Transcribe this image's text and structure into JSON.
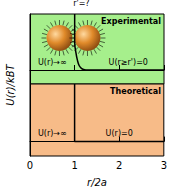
{
  "chart_data": [
    {
      "type": "line",
      "title": "Experimental",
      "ylabel": "U(r)/kBT",
      "x": [
        1,
        1,
        1.03,
        1.06,
        1.1,
        1.15,
        1.2,
        1.3,
        3
      ],
      "values": [
        1,
        0.5,
        0.3,
        0.18,
        0.08,
        0.03,
        0.01,
        0,
        0
      ],
      "color": "#000000",
      "background": "#a6ef8c",
      "xlim": [
        0,
        3
      ],
      "xticks": [
        0,
        1,
        2,
        3
      ],
      "ylim": [
        -0.25,
        1
      ],
      "yticks": [
        0
      ],
      "tick_labels": false,
      "annotations": [
        {
          "text": "r'=?",
          "x": 1.15,
          "y": 1.12
        },
        {
          "text": "U(r)→∞",
          "x": 0.5,
          "y": 0.07
        },
        {
          "text": "U(r≥r')=0",
          "x": 2.2,
          "y": 0.07
        }
      ]
    },
    {
      "type": "line",
      "title": "Theoretical",
      "xlabel": "r/2a",
      "x": [
        1,
        1,
        3
      ],
      "values": [
        1,
        0,
        0
      ],
      "color": "#000000",
      "background": "#f7bb88",
      "xlim": [
        0,
        3
      ],
      "xticks": [
        0,
        1,
        2,
        3
      ],
      "ylim": [
        -0.25,
        1
      ],
      "yticks": [
        0
      ],
      "tick_labels": "x",
      "annotations": [
        {
          "text": "U(r)→∞",
          "x": 0.5,
          "y": 0.07
        },
        {
          "text": "U(r)=0",
          "x": 2.0,
          "y": 0.07
        }
      ]
    }
  ]
}
